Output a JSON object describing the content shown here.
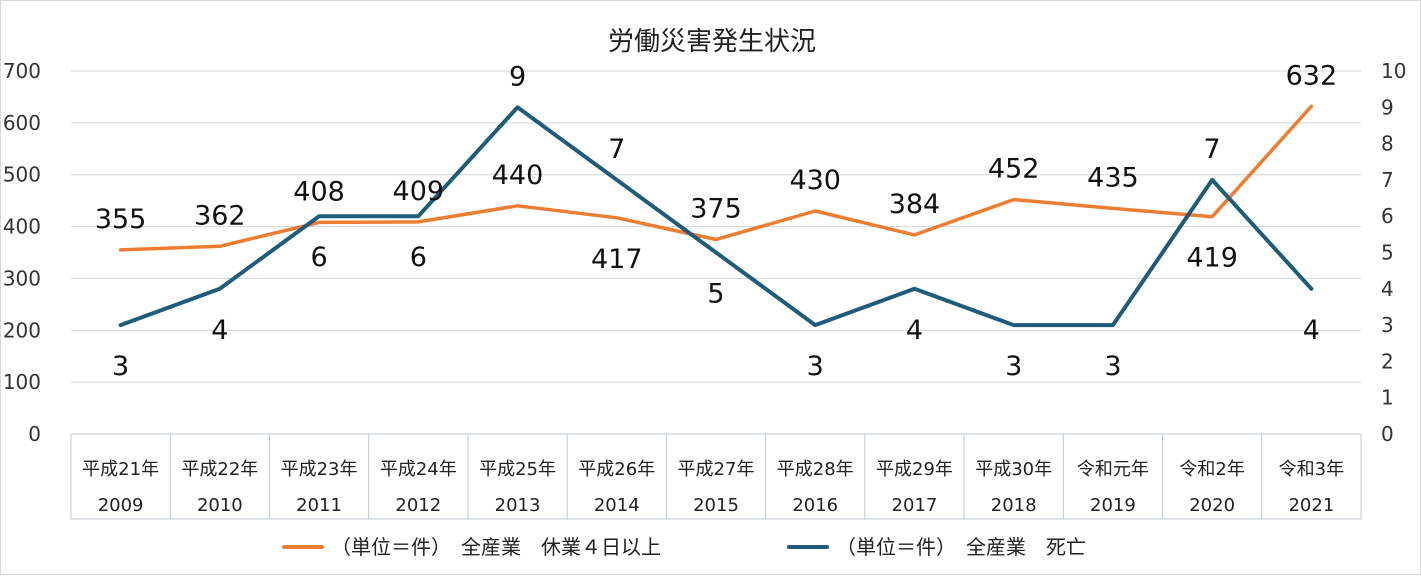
{
  "chart_data": {
    "type": "line",
    "title": "労働災害発生状況",
    "categories": [
      {
        "era": "平成21年",
        "year": "2009"
      },
      {
        "era": "平成22年",
        "year": "2010"
      },
      {
        "era": "平成23年",
        "year": "2011"
      },
      {
        "era": "平成24年",
        "year": "2012"
      },
      {
        "era": "平成25年",
        "year": "2013"
      },
      {
        "era": "平成26年",
        "year": "2014"
      },
      {
        "era": "平成27年",
        "year": "2015"
      },
      {
        "era": "平成28年",
        "year": "2016"
      },
      {
        "era": "平成29年",
        "year": "2017"
      },
      {
        "era": "平成30年",
        "year": "2018"
      },
      {
        "era": "令和元年",
        "year": "2019"
      },
      {
        "era": "令和2年",
        "year": "2020"
      },
      {
        "era": "令和3年",
        "year": "2021"
      }
    ],
    "y_left": {
      "min": 0,
      "max": 700,
      "ticks": [
        "0",
        "100",
        "200",
        "300",
        "400",
        "500",
        "600",
        "700"
      ]
    },
    "y_right": {
      "min": 0,
      "max": 10,
      "ticks": [
        "0",
        "1",
        "2",
        "3",
        "4",
        "5",
        "6",
        "7",
        "8",
        "9",
        "10"
      ]
    },
    "grid": true,
    "legend_position": "bottom",
    "series": [
      {
        "name": "（単位＝件）　全産業　休業４日以上",
        "axis": "left",
        "color": "#ED7D31",
        "values": [
          355,
          362,
          408,
          409,
          440,
          417,
          375,
          430,
          384,
          452,
          435,
          419,
          632
        ],
        "labels": [
          "355",
          "362",
          "408",
          "409",
          "440",
          "417",
          "375",
          "430",
          "384",
          "452",
          "435",
          "419",
          "632"
        ],
        "label_positions": [
          "above",
          "above",
          "above",
          "above",
          "above",
          "below",
          "above",
          "above",
          "above",
          "above",
          "above",
          "below",
          "above"
        ]
      },
      {
        "name": "（単位＝件）　全産業　死亡",
        "axis": "right",
        "color": "#1F5C7A",
        "values": [
          3,
          4,
          6,
          6,
          9,
          7,
          5,
          3,
          4,
          3,
          3,
          7,
          4
        ],
        "labels": [
          "3",
          "4",
          "6",
          "6",
          "9",
          "7",
          "5",
          "3",
          "4",
          "3",
          "3",
          "7",
          "4"
        ],
        "label_positions": [
          "below",
          "below",
          "below",
          "below",
          "above",
          "above",
          "below",
          "below",
          "below",
          "below",
          "below",
          "above",
          "below"
        ]
      }
    ]
  }
}
